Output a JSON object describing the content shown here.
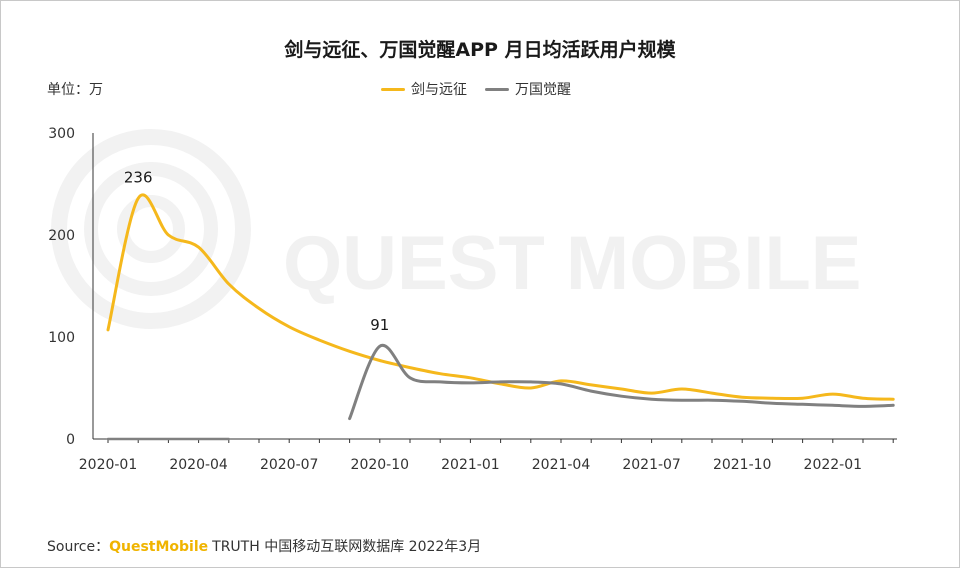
{
  "chart_data": {
    "type": "line",
    "title": "剑与远征、万国觉醒APP 月日均活跃用户规模",
    "unit_label": "单位：万",
    "ylim": [
      0,
      300
    ],
    "yticks": [
      "0",
      "100",
      "200",
      "300"
    ],
    "xticks": [
      "2020-01",
      "2020-04",
      "2020-07",
      "2020-10",
      "2021-01",
      "2021-04",
      "2021-07",
      "2021-10",
      "2022-01"
    ],
    "x": [
      "2020-01",
      "2020-02",
      "2020-03",
      "2020-04",
      "2020-05",
      "2020-06",
      "2020-07",
      "2020-08",
      "2020-09",
      "2020-10",
      "2020-11",
      "2020-12",
      "2021-01",
      "2021-02",
      "2021-03",
      "2021-04",
      "2021-05",
      "2021-06",
      "2021-07",
      "2021-08",
      "2021-09",
      "2021-10",
      "2021-11",
      "2021-12",
      "2022-01",
      "2022-02",
      "2022-03"
    ],
    "series": [
      {
        "name": "剑与远征",
        "color": "#f5b81c",
        "values": [
          107,
          236,
          200,
          188,
          152,
          128,
          110,
          97,
          86,
          77,
          70,
          64,
          60,
          54,
          50,
          57,
          53,
          49,
          45,
          49,
          45,
          41,
          40,
          40,
          44,
          40,
          39
        ]
      },
      {
        "name": "万国觉醒",
        "color": "#808080",
        "values": [
          null,
          null,
          null,
          null,
          null,
          null,
          null,
          null,
          20,
          91,
          60,
          56,
          55,
          56,
          56,
          54,
          47,
          42,
          39,
          38,
          38,
          37,
          35,
          34,
          33,
          32,
          33
        ]
      }
    ],
    "annotations": [
      {
        "series": "剑与远征",
        "x": "2020-02",
        "label": "236"
      },
      {
        "series": "万国觉醒",
        "x": "2020-10",
        "label": "91"
      }
    ]
  },
  "source": {
    "prefix": "Source：",
    "brand": "QuestMobile",
    "rest": "TRUTH 中国移动互联网数据库 2022年3月"
  },
  "watermark": "QUEST MOBILE"
}
